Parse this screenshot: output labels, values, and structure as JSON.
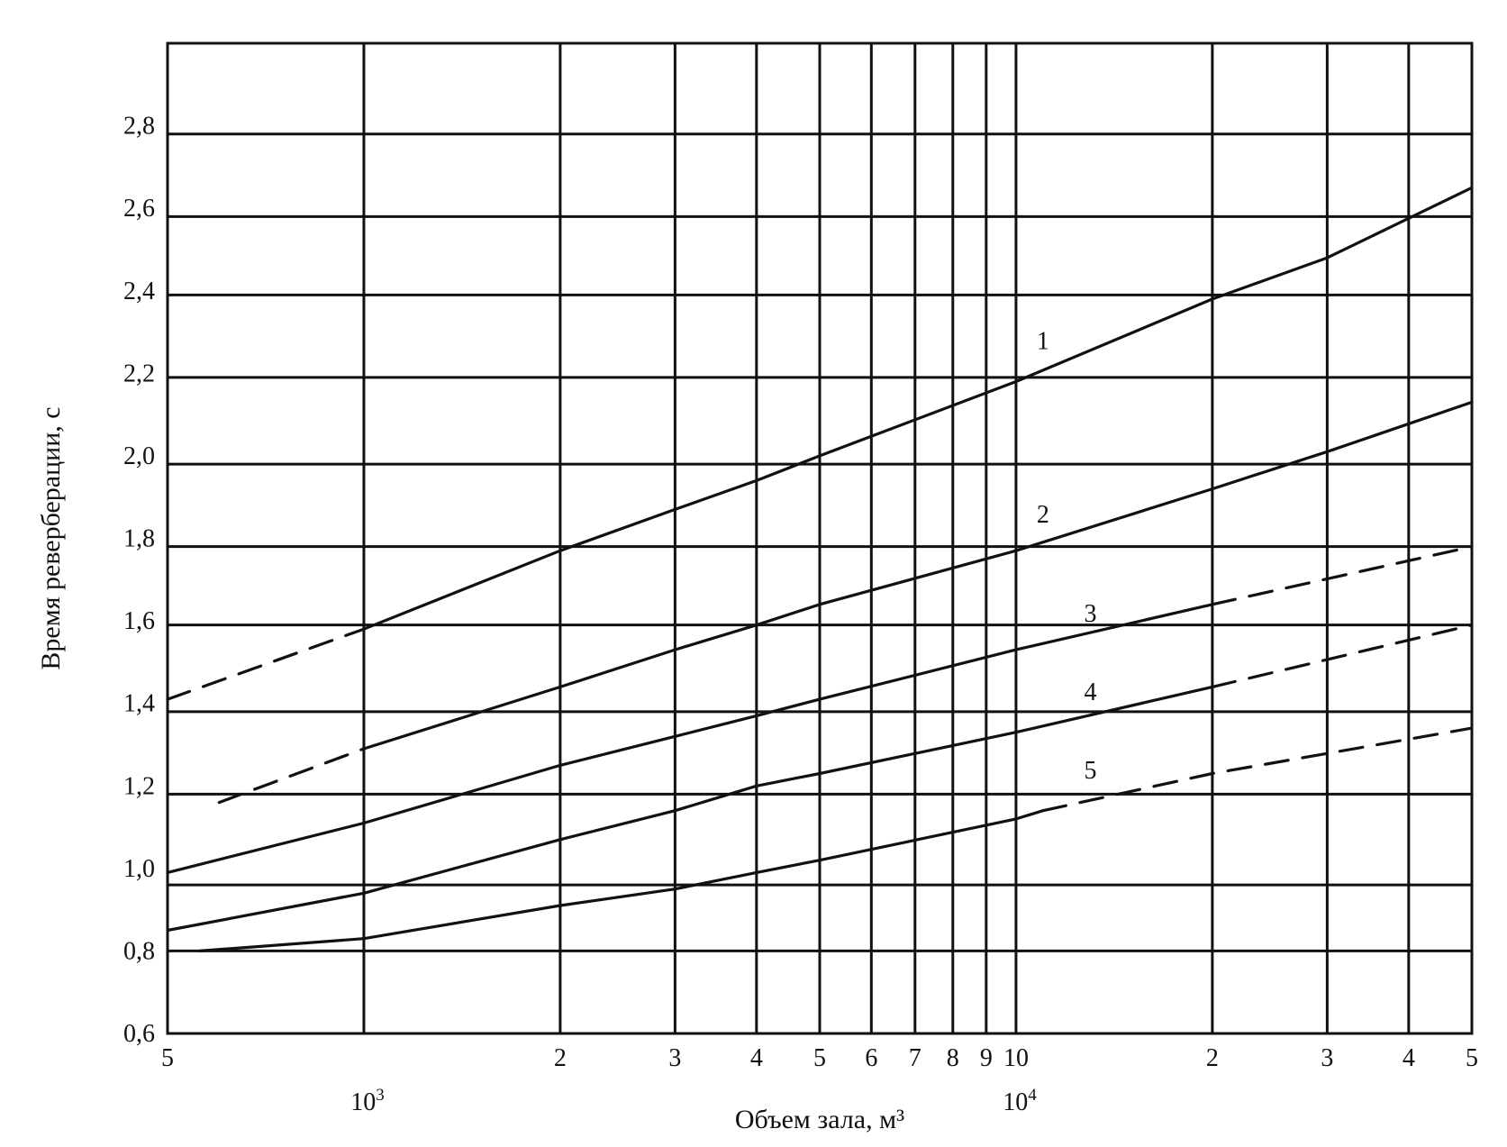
{
  "chart_data": {
    "type": "line",
    "xlabel": "Объем зала, м³",
    "ylabel": "Время реверберации, с",
    "x_scale": "log",
    "xlim": [
      500,
      50000
    ],
    "ylim": [
      0.6,
      3.0
    ],
    "grid": true,
    "x_ticks": [
      {
        "value": 500,
        "label": "5"
      },
      {
        "value": 1000,
        "label": ""
      },
      {
        "value": 2000,
        "label": "2"
      },
      {
        "value": 3000,
        "label": "3"
      },
      {
        "value": 4000,
        "label": "4"
      },
      {
        "value": 5000,
        "label": "5"
      },
      {
        "value": 6000,
        "label": "6"
      },
      {
        "value": 7000,
        "label": "7"
      },
      {
        "value": 8000,
        "label": "8"
      },
      {
        "value": 9000,
        "label": "9"
      },
      {
        "value": 10000,
        "label": "10"
      },
      {
        "value": 20000,
        "label": "2"
      },
      {
        "value": 30000,
        "label": "3"
      },
      {
        "value": 40000,
        "label": "4"
      },
      {
        "value": 50000,
        "label": "5"
      }
    ],
    "decade_labels": [
      {
        "value": 1000,
        "base": "10",
        "exp": "3"
      },
      {
        "value": 10000,
        "base": "10",
        "exp": "4"
      }
    ],
    "y_ticks": [
      {
        "value": 0.6,
        "label": "0,6"
      },
      {
        "value": 0.8,
        "label": "0,8"
      },
      {
        "value": 1.0,
        "label": "1,0"
      },
      {
        "value": 1.2,
        "label": "1,2"
      },
      {
        "value": 1.4,
        "label": "1,4"
      },
      {
        "value": 1.6,
        "label": "1,6"
      },
      {
        "value": 1.8,
        "label": "1,8"
      },
      {
        "value": 2.0,
        "label": "2,0"
      },
      {
        "value": 2.2,
        "label": "2,2"
      },
      {
        "value": 2.4,
        "label": "2,4"
      },
      {
        "value": 2.6,
        "label": "2,6"
      },
      {
        "value": 2.8,
        "label": "2,8"
      }
    ],
    "y_gridlines": [
      0.8,
      0.96,
      1.18,
      1.38,
      1.59,
      1.78,
      1.98,
      2.19,
      2.39,
      2.58,
      2.78
    ],
    "series": [
      {
        "name": "1",
        "segments": [
          {
            "style": "dashed",
            "x": [
              500,
              1000
            ],
            "y": [
              1.41,
              1.58
            ]
          },
          {
            "style": "solid",
            "x": [
              1000,
              2000,
              3000,
              4000,
              5000,
              10000,
              20000,
              30000,
              50000
            ],
            "y": [
              1.58,
              1.77,
              1.87,
              1.94,
              2.0,
              2.18,
              2.38,
              2.48,
              2.65
            ]
          }
        ]
      },
      {
        "name": "2",
        "segments": [
          {
            "style": "dashed",
            "x": [
              600,
              1000
            ],
            "y": [
              1.16,
              1.29
            ]
          },
          {
            "style": "solid",
            "x": [
              1000,
              2000,
              3000,
              4000,
              5000,
              10000,
              20000,
              30000,
              50000
            ],
            "y": [
              1.29,
              1.44,
              1.53,
              1.59,
              1.64,
              1.77,
              1.92,
              2.01,
              2.13
            ]
          }
        ]
      },
      {
        "name": "3",
        "segments": [
          {
            "style": "solid",
            "x": [
              500,
              1000,
              2000,
              3000,
              4000,
              5000,
              10000,
              20000
            ],
            "y": [
              0.99,
              1.11,
              1.25,
              1.32,
              1.37,
              1.41,
              1.53,
              1.64
            ]
          },
          {
            "style": "dashed",
            "x": [
              20000,
              50000
            ],
            "y": [
              1.64,
              1.78
            ]
          }
        ]
      },
      {
        "name": "4",
        "segments": [
          {
            "style": "solid",
            "x": [
              500,
              1000,
              2000,
              3000,
              4000,
              5000,
              10000,
              20000
            ],
            "y": [
              0.85,
              0.94,
              1.07,
              1.14,
              1.2,
              1.23,
              1.33,
              1.44
            ]
          },
          {
            "style": "dashed",
            "x": [
              20000,
              50000
            ],
            "y": [
              1.44,
              1.59
            ]
          }
        ]
      },
      {
        "name": "5",
        "segments": [
          {
            "style": "solid",
            "x": [
              560,
              1000,
              2000,
              3000,
              4000,
              5000,
              10000,
              11000
            ],
            "y": [
              0.8,
              0.83,
              0.91,
              0.95,
              0.99,
              1.02,
              1.12,
              1.14
            ]
          },
          {
            "style": "dashed",
            "x": [
              11000,
              20000,
              50000
            ],
            "y": [
              1.14,
              1.23,
              1.34
            ]
          }
        ]
      }
    ],
    "annotations": [
      {
        "text": "1",
        "x": 11000,
        "y": 2.28
      },
      {
        "text": "2",
        "x": 11000,
        "y": 1.86
      },
      {
        "text": "3",
        "x": 13000,
        "y": 1.62
      },
      {
        "text": "4",
        "x": 13000,
        "y": 1.43
      },
      {
        "text": "5",
        "x": 13000,
        "y": 1.24
      }
    ]
  }
}
